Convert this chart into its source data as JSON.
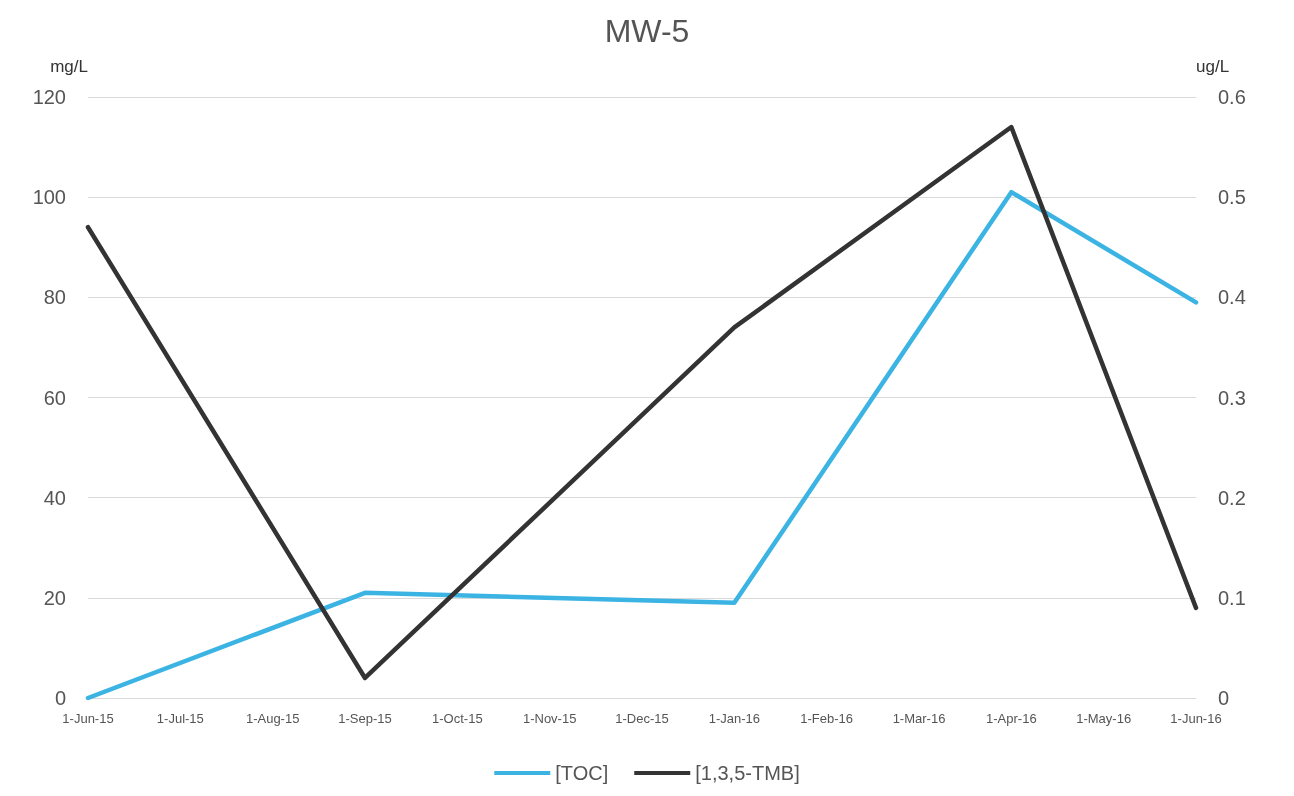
{
  "chart_data": {
    "type": "line",
    "title": "MW-5",
    "ylabel": "mg/L",
    "y2label": "ug/L",
    "categories": [
      "1-Jun-15",
      "1-Jul-15",
      "1-Aug-15",
      "1-Sep-15",
      "1-Oct-15",
      "1-Nov-15",
      "1-Dec-15",
      "1-Jan-16",
      "1-Feb-16",
      "1-Mar-16",
      "1-Apr-16",
      "1-May-16",
      "1-Jun-16"
    ],
    "series": [
      {
        "name": "[TOC]",
        "color": "#3bb3e3",
        "x": [
          "1-Jun-15",
          "1-Sep-15",
          "1-Jan-16",
          "1-Apr-16",
          "1-Jun-16"
        ],
        "values": [
          0,
          21,
          19,
          101,
          79
        ]
      },
      {
        "name": "[1,3,5-TMB]",
        "color": "#333333",
        "axis": "y2",
        "x": [
          "1-Jun-15",
          "1-Sep-15",
          "1-Jan-16",
          "1-Apr-16",
          "1-Jun-16"
        ],
        "values": [
          0.47,
          0.02,
          0.37,
          0.57,
          0.09
        ]
      }
    ],
    "ylim": [
      0,
      120
    ],
    "yticks": [
      0,
      20,
      40,
      60,
      80,
      100,
      120
    ],
    "y2lim": [
      0,
      0.6
    ],
    "y2ticks": [
      0,
      0.1,
      0.2,
      0.3,
      0.4,
      0.5,
      0.6
    ],
    "grid": "y",
    "legend": "bottom",
    "marker": "none",
    "line_style": "solid"
  }
}
